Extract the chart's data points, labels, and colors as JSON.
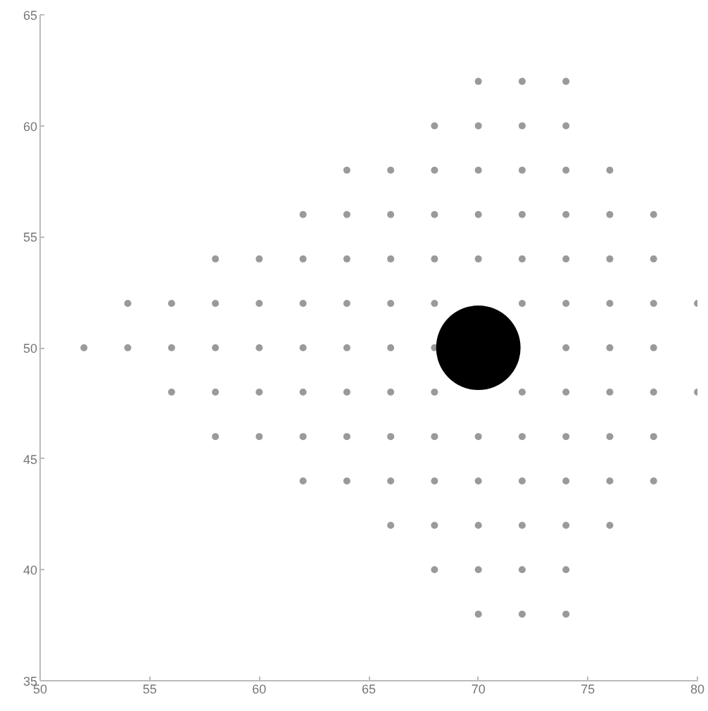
{
  "chart_data": {
    "type": "scatter",
    "xlim": [
      50,
      80
    ],
    "ylim": [
      35,
      65
    ],
    "xticks": [
      50,
      55,
      60,
      65,
      70,
      75,
      80
    ],
    "yticks": [
      35,
      40,
      45,
      50,
      55,
      60,
      65
    ],
    "grid": false,
    "marker": "circle",
    "series": [
      {
        "color": "#9a9a9a",
        "x": [
          70,
          72,
          74,
          68,
          70,
          72,
          74,
          64,
          66,
          68,
          70,
          72,
          74,
          76,
          62,
          64,
          66,
          68,
          70,
          72,
          74,
          76,
          78,
          58,
          60,
          62,
          64,
          66,
          68,
          70,
          72,
          74,
          76,
          78,
          54,
          56,
          58,
          60,
          62,
          64,
          66,
          68,
          72,
          74,
          76,
          78,
          80,
          52,
          54,
          56,
          58,
          60,
          62,
          64,
          66,
          68,
          74,
          76,
          78,
          56,
          58,
          60,
          62,
          64,
          66,
          68,
          72,
          74,
          76,
          78,
          80,
          58,
          60,
          62,
          64,
          66,
          68,
          70,
          72,
          74,
          76,
          78,
          62,
          64,
          66,
          68,
          70,
          72,
          74,
          76,
          78,
          66,
          68,
          70,
          72,
          74,
          76,
          68,
          70,
          72,
          74,
          70,
          72,
          74
        ],
        "values": [
          62,
          62,
          62,
          60,
          60,
          60,
          60,
          58,
          58,
          58,
          58,
          58,
          58,
          58,
          56,
          56,
          56,
          56,
          56,
          56,
          56,
          56,
          56,
          54,
          54,
          54,
          54,
          54,
          54,
          54,
          54,
          54,
          54,
          54,
          52,
          52,
          52,
          52,
          52,
          52,
          52,
          52,
          52,
          52,
          52,
          52,
          52,
          50,
          50,
          50,
          50,
          50,
          50,
          50,
          50,
          50,
          50,
          50,
          50,
          48,
          48,
          48,
          48,
          48,
          48,
          48,
          48,
          48,
          48,
          48,
          48,
          46,
          46,
          46,
          46,
          46,
          46,
          46,
          46,
          46,
          46,
          46,
          44,
          44,
          44,
          44,
          44,
          44,
          44,
          44,
          44,
          42,
          42,
          42,
          42,
          42,
          42,
          40,
          40,
          40,
          40,
          38,
          38,
          38
        ]
      },
      {
        "type": "bubble",
        "color": "#000000",
        "x": [
          70
        ],
        "values": [
          50
        ],
        "sizes": [
          1
        ]
      }
    ]
  }
}
